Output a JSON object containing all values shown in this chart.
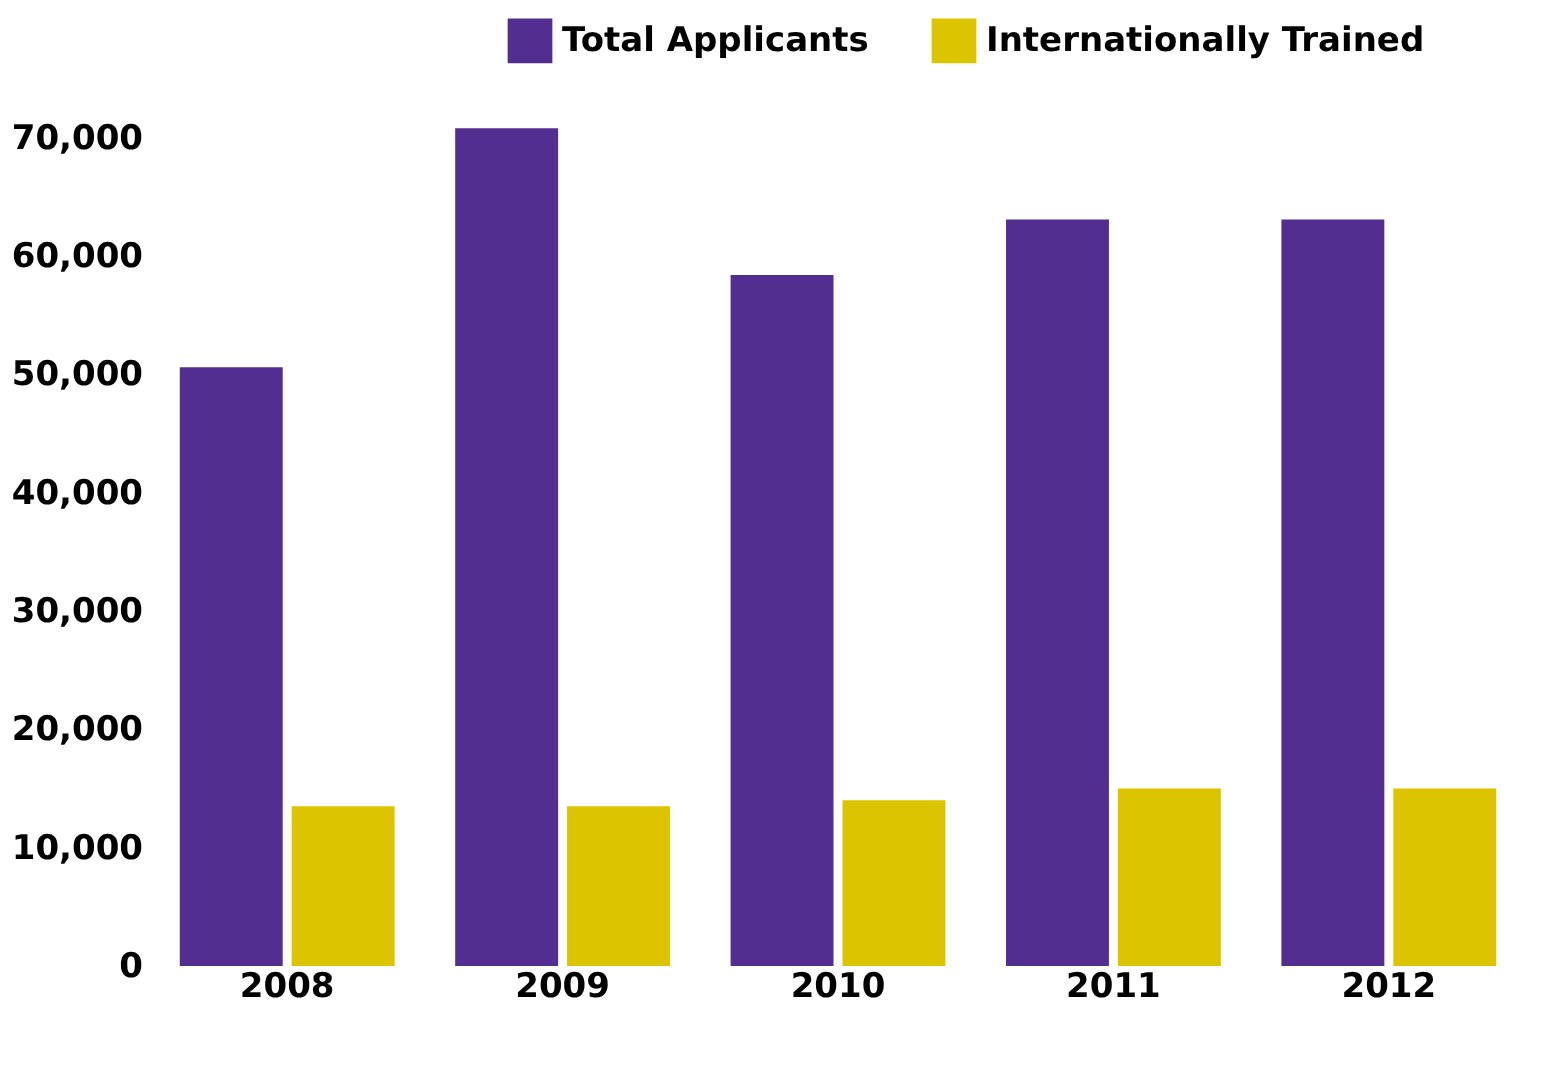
{
  "chart_data": {
    "type": "bar",
    "categories": [
      "2008",
      "2009",
      "2010",
      "2011",
      "2012"
    ],
    "series": [
      {
        "name": "Total Applicants",
        "color": "#532e91",
        "values": [
          50600,
          70800,
          58400,
          63100,
          63100
        ]
      },
      {
        "name": "Internationally Trained",
        "color": "#dcc400",
        "values": [
          13500,
          13500,
          14000,
          15000,
          15000
        ]
      }
    ],
    "ylim": [
      0,
      71000
    ],
    "yticks": [
      0,
      {
        "value": 10000,
        "label": "10,000"
      },
      {
        "value": 20000,
        "label": "20,000"
      },
      {
        "value": 30000,
        "label": "30,000"
      },
      {
        "value": 40000,
        "label": "40,000"
      },
      {
        "value": 50000,
        "label": "50,000"
      },
      {
        "value": 60000,
        "label": "60,000"
      },
      {
        "value": 70000,
        "label": "70,000"
      }
    ],
    "grid": false,
    "legend": "top right"
  }
}
